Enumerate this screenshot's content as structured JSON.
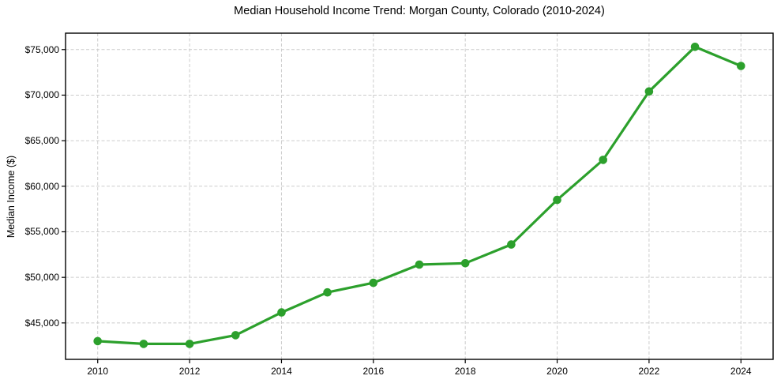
{
  "chart_data": {
    "type": "line",
    "title": "Median Household Income Trend: Morgan County, Colorado (2010-2024)",
    "ylabel": "Median Income ($)",
    "xlabel": "",
    "series_name": "Median Household Income",
    "x": [
      2010,
      2011,
      2012,
      2013,
      2014,
      2015,
      2016,
      2017,
      2018,
      2019,
      2020,
      2021,
      2022,
      2023,
      2024
    ],
    "values": [
      43000,
      42700,
      42700,
      43650,
      46150,
      48350,
      49400,
      51400,
      51550,
      53600,
      58500,
      62900,
      70400,
      75300,
      73200
    ],
    "x_ticks": [
      2010,
      2012,
      2014,
      2016,
      2018,
      2020,
      2022,
      2024
    ],
    "x_tick_labels": [
      "2010",
      "2012",
      "2014",
      "2016",
      "2018",
      "2020",
      "2022",
      "2024"
    ],
    "y_ticks": [
      45000,
      50000,
      55000,
      60000,
      65000,
      70000,
      75000
    ],
    "y_tick_labels": [
      "$45,000",
      "$50,000",
      "$55,000",
      "$60,000",
      "$65,000",
      "$70,000",
      "$75,000"
    ],
    "xlim": [
      2009.3,
      2024.7
    ],
    "ylim": [
      41000,
      76800
    ],
    "grid": true,
    "legend_position": "none",
    "marker": "circle",
    "colors": {
      "line": "#2ca02c",
      "marker": "#2ca02c",
      "grid": "#cccccc",
      "spine": "#000000",
      "text": "#000000",
      "background": "#ffffff"
    }
  }
}
